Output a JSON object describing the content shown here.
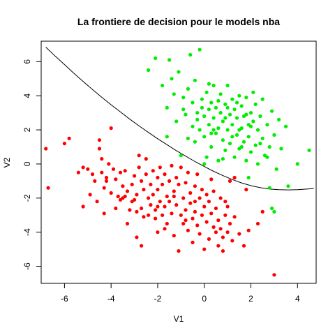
{
  "chart_data": {
    "type": "scatter",
    "title": "La frontiere de decision pour le models nba",
    "xlabel": "V1",
    "ylabel": "V2",
    "xlim": [
      -7.0,
      4.8
    ],
    "ylim": [
      -7.0,
      7.2
    ],
    "x_ticks": [
      -6,
      -4,
      -2,
      0,
      2,
      4
    ],
    "y_ticks": [
      -6,
      -4,
      -2,
      0,
      2,
      4,
      6
    ],
    "grid": false,
    "legend": "none",
    "series": [
      {
        "color": "#ff0000",
        "points": [
          [
            -6.8,
            0.9
          ],
          [
            -6.7,
            -1.4
          ],
          [
            -6.0,
            1.2
          ],
          [
            -5.8,
            1.5
          ],
          [
            -5.4,
            -0.5
          ],
          [
            -5.2,
            -0.2
          ],
          [
            -5.2,
            -2.5
          ],
          [
            -5.0,
            -0.3
          ],
          [
            -4.9,
            -1.8
          ],
          [
            -4.8,
            -0.6
          ],
          [
            -4.7,
            -1.0
          ],
          [
            -4.6,
            -2.2
          ],
          [
            -4.5,
            1.4
          ],
          [
            -4.5,
            0.9
          ],
          [
            -4.4,
            0.3
          ],
          [
            -4.4,
            -0.5
          ],
          [
            -4.3,
            -1.4
          ],
          [
            -4.3,
            -2.9
          ],
          [
            -4.2,
            -1.0
          ],
          [
            -4.1,
            0.0
          ],
          [
            -4.0,
            2.1
          ],
          [
            -4.0,
            -1.7
          ],
          [
            -3.9,
            -0.3
          ],
          [
            -3.8,
            -0.9
          ],
          [
            -3.8,
            -2.6
          ],
          [
            -3.7,
            -1.9
          ],
          [
            -3.6,
            -0.5
          ],
          [
            -3.6,
            -2.1
          ],
          [
            -3.5,
            -1.3
          ],
          [
            -3.5,
            -2.0
          ],
          [
            -3.4,
            -0.4
          ],
          [
            -3.3,
            -1.6
          ],
          [
            -3.3,
            -3.5
          ],
          [
            -3.2,
            -2.7
          ],
          [
            -3.1,
            -1.2
          ],
          [
            -3.0,
            -0.7
          ],
          [
            -3.0,
            -2.1
          ],
          [
            -2.9,
            -1.8
          ],
          [
            -2.9,
            -4.3
          ],
          [
            -2.8,
            -0.2
          ],
          [
            -2.8,
            0.5
          ],
          [
            -2.7,
            -1.0
          ],
          [
            -2.7,
            -2.6
          ],
          [
            -2.7,
            -4.8
          ],
          [
            -2.6,
            -3.1
          ],
          [
            -2.6,
            -1.5
          ],
          [
            -2.5,
            0.3
          ],
          [
            -2.5,
            -0.6
          ],
          [
            -2.4,
            -2.0
          ],
          [
            -2.4,
            -3.0
          ],
          [
            -2.3,
            -1.2
          ],
          [
            -2.3,
            -2.4
          ],
          [
            -2.2,
            -0.4
          ],
          [
            -2.2,
            -1.8
          ],
          [
            -2.1,
            -2.7
          ],
          [
            -2.1,
            -3.2
          ],
          [
            -2.0,
            -0.8
          ],
          [
            -2.0,
            -1.5
          ],
          [
            -2.0,
            -4.0
          ],
          [
            -1.9,
            -2.2
          ],
          [
            -1.9,
            -0.2
          ],
          [
            -1.8,
            -1.2
          ],
          [
            -1.8,
            -3.0
          ],
          [
            -1.7,
            -0.6
          ],
          [
            -1.7,
            -2.5
          ],
          [
            -1.6,
            -1.9
          ],
          [
            -1.6,
            -3.5
          ],
          [
            -1.5,
            -1.0
          ],
          [
            -1.5,
            -2.2
          ],
          [
            -1.4,
            -0.1
          ],
          [
            -1.4,
            -2.9
          ],
          [
            -1.3,
            -1.6
          ],
          [
            -1.3,
            -4.2
          ],
          [
            -1.2,
            -0.8
          ],
          [
            -1.2,
            -2.4
          ],
          [
            -1.1,
            -5.1
          ],
          [
            -1.1,
            -1.2
          ],
          [
            -1.0,
            -3.0
          ],
          [
            -1.0,
            -0.2
          ],
          [
            -0.9,
            -2.0
          ],
          [
            -0.9,
            -3.5
          ],
          [
            -0.8,
            -1.1
          ],
          [
            -0.8,
            -2.7
          ],
          [
            -0.7,
            -0.5
          ],
          [
            -0.7,
            -3.9
          ],
          [
            -0.6,
            -1.7
          ],
          [
            -0.6,
            -2.3
          ],
          [
            -0.5,
            -3.2
          ],
          [
            -0.5,
            -4.6
          ],
          [
            -0.4,
            -1.3
          ],
          [
            -0.4,
            -2.8
          ],
          [
            -0.3,
            -0.6
          ],
          [
            -0.3,
            -3.6
          ],
          [
            -0.2,
            -2.0
          ],
          [
            -0.2,
            -4.1
          ],
          [
            -0.1,
            -1.5
          ],
          [
            -0.1,
            -3.0
          ],
          [
            0.0,
            -2.5
          ],
          [
            0.0,
            -5.0
          ],
          [
            0.1,
            -1.8
          ],
          [
            0.1,
            -3.4
          ],
          [
            0.2,
            -2.2
          ],
          [
            0.2,
            -4.4
          ],
          [
            0.3,
            -0.9
          ],
          [
            0.3,
            -2.9
          ],
          [
            0.4,
            -3.7
          ],
          [
            0.4,
            -1.6
          ],
          [
            0.5,
            -4.0
          ],
          [
            0.5,
            -2.6
          ],
          [
            0.6,
            -3.3
          ],
          [
            0.6,
            -4.8
          ],
          [
            0.7,
            -2.0
          ],
          [
            0.7,
            -3.8
          ],
          [
            0.8,
            -4.3
          ],
          [
            0.8,
            -5.1
          ],
          [
            0.9,
            -3.0
          ],
          [
            1.0,
            -2.5
          ],
          [
            1.0,
            -4.0
          ],
          [
            1.1,
            -1.0
          ],
          [
            1.1,
            -3.5
          ],
          [
            1.2,
            -4.5
          ],
          [
            1.3,
            -0.8
          ],
          [
            1.3,
            -3.1
          ],
          [
            1.5,
            -4.1
          ],
          [
            2.3,
            -3.5
          ],
          [
            1.8,
            -1.5
          ],
          [
            1.9,
            -3.9
          ],
          [
            2.5,
            -2.8
          ],
          [
            1.7,
            -4.8
          ],
          [
            3.0,
            -6.5
          ],
          [
            -1.3,
            -1.9
          ],
          [
            -3.4,
            -1.9
          ],
          [
            -2.9,
            -2.8
          ],
          [
            -2.0,
            -2.5
          ],
          [
            -0.8,
            -3.3
          ],
          [
            0.9,
            -2.2
          ],
          [
            -4.2,
            -0.8
          ],
          [
            -3.1,
            -2.2
          ],
          [
            -1.7,
            -3.8
          ],
          [
            -0.4,
            -2.2
          ]
        ]
      },
      {
        "color": "#00ee00",
        "points": [
          [
            -2.4,
            5.5
          ],
          [
            -2.1,
            6.2
          ],
          [
            -1.5,
            6.1
          ],
          [
            -1.8,
            4.6
          ],
          [
            -1.6,
            3.3
          ],
          [
            -1.4,
            5.0
          ],
          [
            -1.3,
            4.1
          ],
          [
            -1.2,
            2.5
          ],
          [
            -1.1,
            5.4
          ],
          [
            -1.0,
            0.5
          ],
          [
            -0.9,
            3.9
          ],
          [
            -0.8,
            2.9
          ],
          [
            -0.7,
            4.4
          ],
          [
            -0.6,
            6.4
          ],
          [
            -0.5,
            2.2
          ],
          [
            -0.5,
            3.6
          ],
          [
            -0.4,
            1.3
          ],
          [
            -0.4,
            4.9
          ],
          [
            -0.3,
            3.0
          ],
          [
            -0.2,
            2.0
          ],
          [
            -0.2,
            6.7
          ],
          [
            -0.1,
            3.8
          ],
          [
            0.0,
            1.6
          ],
          [
            0.0,
            2.8
          ],
          [
            0.1,
            4.2
          ],
          [
            0.1,
            0.4
          ],
          [
            0.2,
            3.2
          ],
          [
            0.2,
            2.3
          ],
          [
            0.3,
            3.6
          ],
          [
            0.3,
            1.0
          ],
          [
            0.4,
            2.7
          ],
          [
            0.4,
            4.6
          ],
          [
            0.5,
            1.8
          ],
          [
            0.5,
            3.3
          ],
          [
            0.6,
            2.1
          ],
          [
            0.6,
            0.2
          ],
          [
            0.7,
            3.0
          ],
          [
            0.7,
            4.1
          ],
          [
            0.8,
            1.4
          ],
          [
            0.8,
            2.5
          ],
          [
            0.9,
            3.5
          ],
          [
            0.9,
            0.8
          ],
          [
            1.0,
            2.0
          ],
          [
            1.0,
            4.6
          ],
          [
            1.1,
            2.9
          ],
          [
            1.1,
            1.2
          ],
          [
            1.2,
            3.8
          ],
          [
            1.2,
            2.3
          ],
          [
            1.3,
            0.4
          ],
          [
            1.3,
            3.2
          ],
          [
            1.4,
            1.7
          ],
          [
            1.4,
            2.7
          ],
          [
            1.5,
            4.0
          ],
          [
            1.5,
            0.9
          ],
          [
            1.6,
            2.1
          ],
          [
            1.6,
            3.4
          ],
          [
            1.7,
            1.3
          ],
          [
            1.7,
            2.8
          ],
          [
            1.8,
            0.2
          ],
          [
            1.8,
            3.9
          ],
          [
            1.9,
            2.3
          ],
          [
            1.9,
            1.6
          ],
          [
            2.0,
            3.0
          ],
          [
            2.0,
            0.7
          ],
          [
            2.1,
            2.5
          ],
          [
            2.1,
            4.2
          ],
          [
            2.2,
            1.1
          ],
          [
            2.2,
            3.5
          ],
          [
            2.3,
            2.0
          ],
          [
            2.3,
            0.0
          ],
          [
            2.4,
            2.8
          ],
          [
            2.5,
            1.5
          ],
          [
            2.5,
            3.8
          ],
          [
            2.6,
            0.5
          ],
          [
            2.7,
            2.3
          ],
          [
            2.8,
            1.0
          ],
          [
            2.9,
            3.1
          ],
          [
            3.0,
            1.7
          ],
          [
            3.1,
            -0.3
          ],
          [
            3.2,
            2.6
          ],
          [
            3.3,
            0.9
          ],
          [
            3.5,
            2.2
          ],
          [
            3.6,
            -1.3
          ],
          [
            4.0,
            0.0
          ],
          [
            4.5,
            0.8
          ],
          [
            2.9,
            -2.6
          ],
          [
            3.0,
            -2.8
          ],
          [
            2.8,
            -1.4
          ],
          [
            1.9,
            -0.8
          ],
          [
            -1.6,
            1.6
          ],
          [
            -0.7,
            1.5
          ],
          [
            0.0,
            0.0
          ],
          [
            0.3,
            1.8
          ],
          [
            1.0,
            3.3
          ],
          [
            1.5,
            2.0
          ],
          [
            2.0,
            2.2
          ],
          [
            -0.3,
            2.6
          ],
          [
            0.6,
            3.7
          ],
          [
            1.2,
            1.6
          ],
          [
            1.8,
            2.9
          ],
          [
            0.4,
            2.0
          ],
          [
            0.9,
            2.7
          ],
          [
            1.6,
            1.0
          ],
          [
            -0.1,
            3.3
          ],
          [
            2.4,
            1.2
          ],
          [
            0.2,
            4.7
          ],
          [
            1.4,
            3.6
          ],
          [
            0.8,
            0.3
          ],
          [
            2.7,
            0.4
          ],
          [
            -0.9,
            3.2
          ]
        ]
      }
    ],
    "boundary": {
      "color": "#000000",
      "points": [
        [
          -6.8,
          6.85
        ],
        [
          -6.4,
          6.33
        ],
        [
          -6.0,
          5.83
        ],
        [
          -5.6,
          5.32
        ],
        [
          -5.2,
          4.84
        ],
        [
          -4.8,
          4.37
        ],
        [
          -4.4,
          3.91
        ],
        [
          -4.0,
          3.47
        ],
        [
          -3.6,
          3.05
        ],
        [
          -3.2,
          2.63
        ],
        [
          -2.8,
          2.23
        ],
        [
          -2.4,
          1.85
        ],
        [
          -2.0,
          1.48
        ],
        [
          -1.6,
          1.13
        ],
        [
          -1.2,
          0.78
        ],
        [
          -0.8,
          0.46
        ],
        [
          -0.4,
          0.14
        ],
        [
          0.0,
          -0.15
        ],
        [
          0.4,
          -0.43
        ],
        [
          0.8,
          -0.68
        ],
        [
          1.2,
          -0.91
        ],
        [
          1.6,
          -1.11
        ],
        [
          2.0,
          -1.27
        ],
        [
          2.4,
          -1.39
        ],
        [
          2.8,
          -1.47
        ],
        [
          3.2,
          -1.51
        ],
        [
          3.6,
          -1.52
        ],
        [
          4.0,
          -1.51
        ],
        [
          4.4,
          -1.47
        ],
        [
          4.7,
          -1.44
        ]
      ]
    }
  }
}
